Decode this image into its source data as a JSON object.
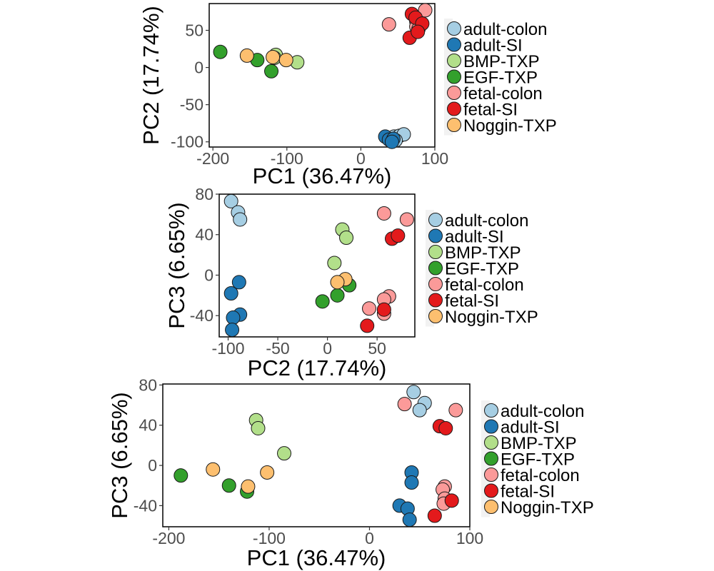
{
  "groups": [
    {
      "name": "adult-colon",
      "color": "#A6CEE3"
    },
    {
      "name": "adult-SI",
      "color": "#1F78B4"
    },
    {
      "name": "BMP-TXP",
      "color": "#B2DF8A"
    },
    {
      "name": "EGF-TXP",
      "color": "#33A02C"
    },
    {
      "name": "fetal-colon",
      "color": "#FB9A99"
    },
    {
      "name": "fetal-SI",
      "color": "#E31A1C"
    },
    {
      "name": "Noggin-TXP",
      "color": "#FDBF6F"
    }
  ],
  "chart_data": [
    {
      "type": "scatter",
      "xlabel": "PC1 (36.47%)",
      "ylabel": "PC2 (17.74%)",
      "xlim": [
        -205,
        100
      ],
      "ylim": [
        -107,
        86
      ],
      "xticks": [
        -200,
        -100,
        0,
        100
      ],
      "xtick_labels": [
        "-200",
        "-100",
        "0",
        "100"
      ],
      "yticks": [
        -100,
        -50,
        0,
        50
      ],
      "ytick_labels": [
        "-100",
        "-50",
        "0",
        "50"
      ],
      "legend_position": "right",
      "grid": false,
      "series": [
        {
          "name": "adult-colon",
          "points": [
            [
              40,
              -97
            ],
            [
              45,
              -93
            ],
            [
              52,
              -92
            ],
            [
              58,
              -90
            ],
            [
              47,
              -98
            ]
          ]
        },
        {
          "name": "adult-SI",
          "points": [
            [
              33,
              -93
            ],
            [
              38,
              -97
            ],
            [
              44,
              -96
            ],
            [
              42,
              -100
            ]
          ]
        },
        {
          "name": "BMP-TXP",
          "points": [
            [
              -115,
              17
            ],
            [
              -117,
              13
            ],
            [
              -86,
              7
            ]
          ]
        },
        {
          "name": "EGF-TXP",
          "points": [
            [
              -190,
              21
            ],
            [
              -140,
              10
            ],
            [
              -121,
              -5
            ]
          ]
        },
        {
          "name": "fetal-colon",
          "points": [
            [
              38,
              58
            ],
            [
              75,
              62
            ],
            [
              75,
              55
            ],
            [
              87,
              77
            ],
            [
              78,
              52
            ]
          ]
        },
        {
          "name": "fetal-SI",
          "points": [
            [
              69,
              72
            ],
            [
              74,
              67
            ],
            [
              83,
              59
            ],
            [
              66,
              40
            ],
            [
              77,
              48
            ]
          ]
        },
        {
          "name": "Noggin-TXP",
          "points": [
            [
              -154,
              16
            ],
            [
              -119,
              14
            ],
            [
              -101,
              10
            ]
          ]
        }
      ]
    },
    {
      "type": "scatter",
      "xlabel": "PC2 (17.74%)",
      "ylabel": "PC3 (6.65%)",
      "xlim": [
        -109,
        88
      ],
      "ylim": [
        -61,
        80
      ],
      "xticks": [
        -100,
        -50,
        0,
        50
      ],
      "xtick_labels": [
        "-100",
        "-50",
        "0",
        "50"
      ],
      "yticks": [
        -40,
        0,
        40,
        80
      ],
      "ytick_labels": [
        "-40",
        "0",
        "40",
        "80"
      ],
      "legend_position": "right",
      "grid": false,
      "series": [
        {
          "name": "adult-colon",
          "points": [
            [
              -97,
              73
            ],
            [
              -90,
              62
            ],
            [
              -88,
              55
            ]
          ]
        },
        {
          "name": "adult-SI",
          "points": [
            [
              -89,
              -7
            ],
            [
              -97,
              -18
            ],
            [
              -88,
              -39
            ],
            [
              -95,
              -42
            ],
            [
              -96,
              -54
            ]
          ]
        },
        {
          "name": "BMP-TXP",
          "points": [
            [
              15,
              45
            ],
            [
              19,
              37
            ],
            [
              7,
              12
            ]
          ]
        },
        {
          "name": "EGF-TXP",
          "points": [
            [
              -5,
              -26
            ],
            [
              10,
              -20
            ],
            [
              22,
              -10
            ]
          ]
        },
        {
          "name": "fetal-colon",
          "points": [
            [
              57,
              61
            ],
            [
              80,
              55
            ],
            [
              62,
              -21
            ],
            [
              57,
              -24
            ],
            [
              42,
              -33
            ],
            [
              57,
              -38
            ]
          ]
        },
        {
          "name": "fetal-SI",
          "points": [
            [
              65,
              36
            ],
            [
              71,
              39
            ],
            [
              57,
              -34
            ],
            [
              40,
              -50
            ]
          ]
        },
        {
          "name": "Noggin-TXP",
          "points": [
            [
              18,
              -4
            ],
            [
              10,
              -7
            ]
          ]
        }
      ]
    },
    {
      "type": "scatter",
      "xlabel": "PC1 (36.47%)",
      "ylabel": "PC3 (6.65%)",
      "xlim": [
        -206,
        100
      ],
      "ylim": [
        -61,
        81
      ],
      "xticks": [
        -200,
        -100,
        0,
        100
      ],
      "xtick_labels": [
        "-200",
        "-100",
        "0",
        "100"
      ],
      "yticks": [
        -40,
        0,
        40,
        80
      ],
      "ytick_labels": [
        "-40",
        "0",
        "40",
        "80"
      ],
      "legend_position": "right",
      "grid": false,
      "series": [
        {
          "name": "adult-colon",
          "points": [
            [
              44,
              73
            ],
            [
              55,
              62
            ],
            [
              50,
              55
            ]
          ]
        },
        {
          "name": "adult-SI",
          "points": [
            [
              42,
              -7
            ],
            [
              42,
              -17
            ],
            [
              30,
              -40
            ],
            [
              38,
              -43
            ],
            [
              40,
              -54
            ]
          ]
        },
        {
          "name": "BMP-TXP",
          "points": [
            [
              -113,
              45
            ],
            [
              -111,
              37
            ],
            [
              -85,
              12
            ]
          ]
        },
        {
          "name": "EGF-TXP",
          "points": [
            [
              -188,
              -10
            ],
            [
              -140,
              -20
            ],
            [
              -122,
              -26
            ]
          ]
        },
        {
          "name": "fetal-colon",
          "points": [
            [
              35,
              61
            ],
            [
              86,
              55
            ],
            [
              75,
              -21
            ],
            [
              73,
              -24
            ],
            [
              75,
              -33
            ],
            [
              74,
              -38
            ]
          ]
        },
        {
          "name": "fetal-SI",
          "points": [
            [
              70,
              39
            ],
            [
              76,
              37
            ],
            [
              82,
              -35
            ],
            [
              65,
              -50
            ]
          ]
        },
        {
          "name": "Noggin-TXP",
          "points": [
            [
              -156,
              -4
            ],
            [
              -121,
              -21
            ],
            [
              -102,
              -7
            ]
          ]
        }
      ]
    }
  ]
}
